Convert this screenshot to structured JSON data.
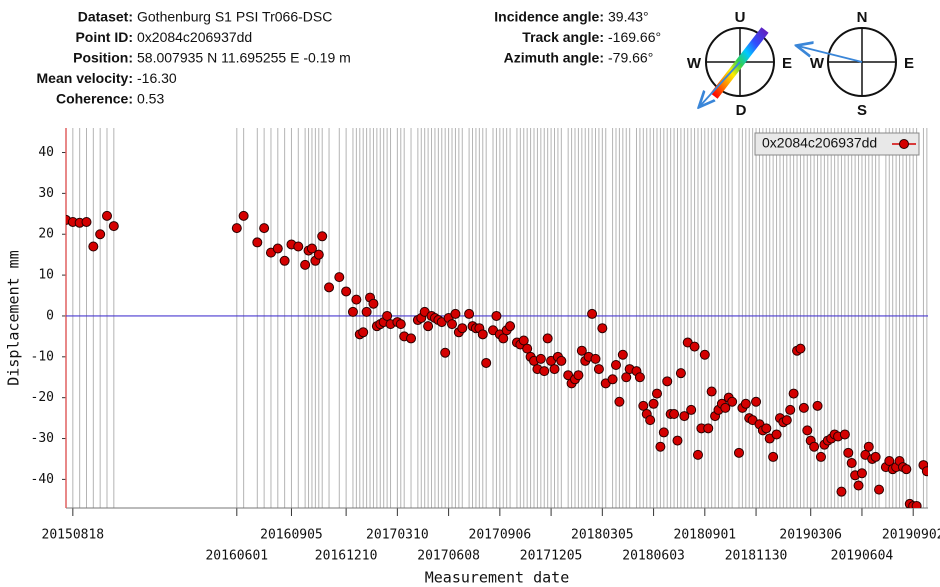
{
  "header": {
    "fields": [
      {
        "label": "Dataset:",
        "value": "Gothenburg S1 PSI Tr066-DSC"
      },
      {
        "label": "Point ID:",
        "value": "0x2084c206937dd"
      },
      {
        "label": "Position:",
        "value": "58.007935 N 11.695255 E -0.19 m"
      },
      {
        "label": "Mean velocity:",
        "value": "-16.30"
      },
      {
        "label": "Coherence:",
        "value": "0.53"
      }
    ],
    "angles": [
      {
        "label": "Incidence angle:",
        "value": "39.43°"
      },
      {
        "label": "Track angle:",
        "value": "-169.66°"
      },
      {
        "label": "Azimuth angle:",
        "value": "-79.66°"
      }
    ],
    "compass_vertical": {
      "up": "U",
      "down": "D",
      "west": "W",
      "east": "E"
    },
    "compass_horizontal": {
      "north": "N",
      "south": "S",
      "west": "W",
      "east": "E"
    }
  },
  "chart_data": {
    "type": "scatter",
    "x_label": "Measurement date",
    "y_label": "Displacement mm",
    "xlim": [
      "20150806",
      "20190928"
    ],
    "ylim": [
      -47,
      46
    ],
    "yticks": [
      -40,
      -30,
      -20,
      -10,
      0,
      10,
      20,
      30,
      40
    ],
    "xticks": [
      "20150818",
      "20160601",
      "20160905",
      "20161210",
      "20170310",
      "20170608",
      "20170906",
      "20171205",
      "20180305",
      "20180603",
      "20180901",
      "20181130",
      "20190306",
      "20190604",
      "20190902"
    ],
    "legend": "top-right",
    "series": [
      {
        "name": "0x2084c206937dd",
        "color": "#d40000",
        "x": [
          "20150806",
          "20150818",
          "20150830",
          "20150911",
          "20150923",
          "20151005",
          "20151017",
          "20151029",
          "20160601",
          "20160613",
          "20160707",
          "20160719",
          "20160731",
          "20160812",
          "20160824",
          "20160905",
          "20160917",
          "20160929",
          "20161005",
          "20161011",
          "20161017",
          "20161023",
          "20161029",
          "20161110",
          "20161128",
          "20161210",
          "20161222",
          "20161228",
          "20170103",
          "20170109",
          "20170115",
          "20170121",
          "20170127",
          "20170202",
          "20170208",
          "20170214",
          "20170220",
          "20170226",
          "20170310",
          "20170316",
          "20170322",
          "20170403",
          "20170415",
          "20170421",
          "20170427",
          "20170503",
          "20170509",
          "20170515",
          "20170521",
          "20170527",
          "20170602",
          "20170608",
          "20170614",
          "20170620",
          "20170626",
          "20170702",
          "20170714",
          "20170720",
          "20170726",
          "20170801",
          "20170807",
          "20170813",
          "20170825",
          "20170831",
          "20170906",
          "20170912",
          "20170918",
          "20170924",
          "20171006",
          "20171012",
          "20171018",
          "20171024",
          "20171030",
          "20171105",
          "20171111",
          "20171117",
          "20171123",
          "20171129",
          "20171205",
          "20171211",
          "20171217",
          "20171223",
          "20180104",
          "20180110",
          "20180116",
          "20180122",
          "20180128",
          "20180203",
          "20180209",
          "20180215",
          "20180221",
          "20180227",
          "20180305",
          "20180311",
          "20180323",
          "20180329",
          "20180404",
          "20180410",
          "20180416",
          "20180422",
          "20180504",
          "20180510",
          "20180516",
          "20180522",
          "20180528",
          "20180603",
          "20180609",
          "20180615",
          "20180621",
          "20180627",
          "20180703",
          "20180709",
          "20180715",
          "20180721",
          "20180727",
          "20180802",
          "20180808",
          "20180814",
          "20180820",
          "20180826",
          "20180901",
          "20180907",
          "20180913",
          "20180919",
          "20180925",
          "20181001",
          "20181007",
          "20181013",
          "20181019",
          "20181031",
          "20181106",
          "20181112",
          "20181118",
          "20181124",
          "20181130",
          "20181206",
          "20181212",
          "20181218",
          "20181224",
          "20181230",
          "20190105",
          "20190111",
          "20190117",
          "20190123",
          "20190129",
          "20190204",
          "20190210",
          "20190216",
          "20190222",
          "20190228",
          "20190306",
          "20190312",
          "20190318",
          "20190324",
          "20190330",
          "20190405",
          "20190411",
          "20190417",
          "20190423",
          "20190429",
          "20190505",
          "20190511",
          "20190517",
          "20190523",
          "20190529",
          "20190604",
          "20190610",
          "20190616",
          "20190622",
          "20190628",
          "20190704",
          "20190716",
          "20190722",
          "20190728",
          "20190803",
          "20190809",
          "20190815",
          "20190821",
          "20190827",
          "20190902",
          "20190908",
          "20190920",
          "20190926"
        ],
        "values": [
          23.5,
          23,
          22.8,
          23,
          17,
          20,
          24.5,
          22,
          21.5,
          24.5,
          18,
          21.5,
          15.5,
          16.5,
          13.5,
          17.5,
          17,
          12.5,
          16,
          16.5,
          13.5,
          15,
          19.5,
          7,
          9.5,
          6,
          1,
          4,
          -4.5,
          -4,
          1,
          4.5,
          3,
          -2.5,
          -2,
          -1.5,
          0,
          -2,
          -1.5,
          -2,
          -5,
          -5.5,
          -1,
          -0.5,
          1,
          -2.5,
          0,
          -0.5,
          -1,
          -1.5,
          -9,
          -0.5,
          -2,
          0.5,
          -4,
          -3,
          0.5,
          -2.5,
          -3,
          -3,
          -4.5,
          -11.5,
          -3.5,
          0,
          -4.5,
          -5.5,
          -3.5,
          -2.5,
          -6.5,
          -7,
          -6,
          -8,
          -10,
          -11,
          -13,
          -10.5,
          -13.5,
          -5.5,
          -11,
          -13,
          -10,
          -11,
          -14.5,
          -16.5,
          -15.5,
          -14.5,
          -8.5,
          -11,
          -10,
          0.5,
          -10.5,
          -13,
          -3,
          -16.5,
          -15.5,
          -12,
          -21,
          -9.5,
          -15,
          -13,
          -13.5,
          -15,
          -22,
          -24,
          -25.5,
          -21.5,
          -19,
          -32,
          -28.5,
          -16,
          -24,
          -24,
          -30.5,
          -14,
          -24.5,
          -6.5,
          -23,
          -7.5,
          -34,
          -27.5,
          -9.5,
          -27.5,
          -18.5,
          -24.5,
          -23,
          -21.5,
          -22.5,
          -20,
          -21,
          -33.5,
          -22.5,
          -21.5,
          -25,
          -25.5,
          -21,
          -26.5,
          -28,
          -27.5,
          -30,
          -34.5,
          -29,
          -25,
          -26,
          -25.5,
          -23,
          -19,
          -8.5,
          -8,
          -22.5,
          -28,
          -30.5,
          -32,
          -22,
          -34.5,
          -31.5,
          -30.5,
          -30,
          -29,
          -29.5,
          -43,
          -29,
          -33.5,
          -36,
          -39,
          -41.5,
          -38.5,
          -34,
          -32,
          -35,
          -34.5,
          -42.5,
          -37,
          -35.5,
          -37.5,
          -37,
          -35.5,
          -37,
          -37.5,
          -46,
          -46.5,
          -46.5,
          -36.5,
          -38
        ]
      }
    ]
  }
}
